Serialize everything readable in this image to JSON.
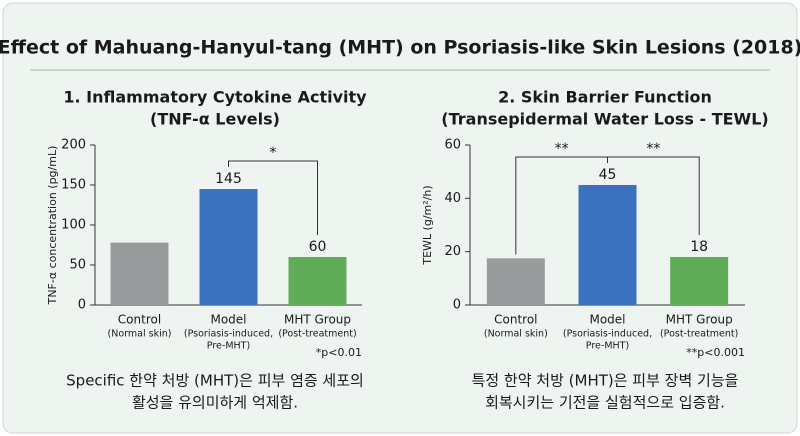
{
  "title": "Effect of Mahuang-Hanyul-tang (MHT) on Psoriasis-like Skin Lesions (2018)",
  "chart_data": [
    {
      "type": "bar",
      "title": [
        "1. Inflammatory Cytokine Activity",
        "(TNF-α Levels)"
      ],
      "ylabel": "TNF-α concentration (pg/mL)",
      "categories": [
        "Control",
        "Model",
        "MHT Group"
      ],
      "category_notes": [
        [
          "(Normal skin)"
        ],
        [
          "(Psoriasis-induced,",
          "Pre-MHT)"
        ],
        [
          "(Post-treatment)"
        ]
      ],
      "values": [
        78,
        145,
        60
      ],
      "value_labels": [
        null,
        "145",
        "60"
      ],
      "colors": [
        "#9a9b9d",
        "#3a72c0",
        "#60ad57"
      ],
      "ylim": [
        0,
        200
      ],
      "yticks": [
        0,
        50,
        100,
        150,
        200
      ],
      "significance": [
        {
          "between": [
            "Model",
            "MHT Group"
          ],
          "label": "*"
        }
      ],
      "footnote": "*p<0.01",
      "caption": [
        "Specific 한약 처방 (MHT)은 피부 염증 세포의",
        "활성을 유의미하게 억제함."
      ]
    },
    {
      "type": "bar",
      "title": [
        "2. Skin Barrier Function",
        "(Transepidermal Water Loss - TEWL)"
      ],
      "ylabel": "TEWL (g/m²/h)",
      "categories": [
        "Control",
        "Model",
        "MHT Group"
      ],
      "category_notes": [
        [
          "(Normal skin)"
        ],
        [
          "(Psoriasis-induced,",
          "Pre-MHT)"
        ],
        [
          "(Post-treatment)"
        ]
      ],
      "values": [
        17.5,
        45,
        18
      ],
      "value_labels": [
        null,
        "45",
        "18"
      ],
      "colors": [
        "#9a9b9d",
        "#3a72c0",
        "#60ad57"
      ],
      "ylim": [
        0,
        60
      ],
      "yticks": [
        0,
        20,
        40,
        60
      ],
      "significance": [
        {
          "between": [
            "Control",
            "Model"
          ],
          "label": "**"
        },
        {
          "between": [
            "Model",
            "MHT Group"
          ],
          "label": "**"
        }
      ],
      "footnote": "**p<0.001",
      "caption": [
        "특정 한약 처방 (MHT)은 피부 장벽 기능을",
        "회복시키는 기전을 실험적으로 입증함."
      ]
    }
  ]
}
